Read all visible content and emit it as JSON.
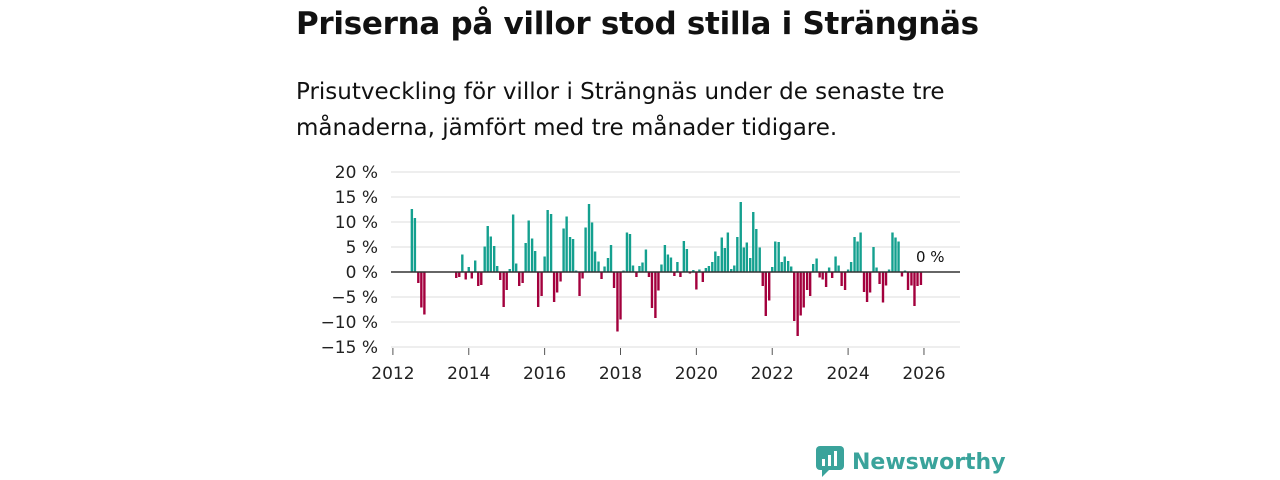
{
  "title": "Priserna på villor stod stilla i Strängnäs",
  "subtitle": "Prisutveckling för villor i Strängnäs under de senaste tre månaderna, jämfört med tre månader tidigare.",
  "brand": {
    "name": "Newsworthy",
    "icon": "bar-chart-speech-bubble-icon"
  },
  "colors": {
    "positive": "#14a08f",
    "negative": "#a3003d",
    "grid": "#dddddd",
    "zero_line": "#333333",
    "brand": "#3aa39b"
  },
  "chart_data": {
    "type": "bar",
    "y_unit": "%",
    "ylim": [
      -15,
      20
    ],
    "y_ticks": [
      "20 %",
      "15 %",
      "10 %",
      "5 %",
      "0 %",
      "−5 %",
      "−10 %",
      "−15 %"
    ],
    "y_tick_values": [
      20,
      15,
      10,
      5,
      0,
      -5,
      -10,
      -15
    ],
    "x_ticks": [
      "2012",
      "2014",
      "2016",
      "2018",
      "2020",
      "2022",
      "2024",
      "2026"
    ],
    "x_tick_values": [
      2012,
      2014,
      2016,
      2018,
      2020,
      2022,
      2024,
      2026
    ],
    "xlim": [
      2011.95,
      2026.95
    ],
    "series": [
      {
        "name": "Prisutveckling",
        "points": [
          [
            2012.5,
            12.6
          ],
          [
            2012.58,
            10.8
          ],
          [
            2012.67,
            -2.2
          ],
          [
            2012.75,
            -7.1
          ],
          [
            2012.83,
            -8.5
          ],
          [
            2013.67,
            -1.2
          ],
          [
            2013.75,
            -1.0
          ],
          [
            2013.83,
            3.5
          ],
          [
            2013.92,
            -1.5
          ],
          [
            2014.0,
            1.0
          ],
          [
            2014.08,
            -1.3
          ],
          [
            2014.17,
            2.3
          ],
          [
            2014.25,
            -2.8
          ],
          [
            2014.33,
            -2.6
          ],
          [
            2014.42,
            5.1
          ],
          [
            2014.5,
            9.2
          ],
          [
            2014.58,
            7.1
          ],
          [
            2014.67,
            5.2
          ],
          [
            2014.75,
            1.2
          ],
          [
            2014.83,
            -1.6
          ],
          [
            2014.92,
            -7.0
          ],
          [
            2015.0,
            -3.6
          ],
          [
            2015.08,
            0.6
          ],
          [
            2015.17,
            11.5
          ],
          [
            2015.25,
            1.7
          ],
          [
            2015.33,
            -2.8
          ],
          [
            2015.42,
            -2.2
          ],
          [
            2015.5,
            5.8
          ],
          [
            2015.58,
            10.3
          ],
          [
            2015.67,
            6.7
          ],
          [
            2015.75,
            4.2
          ],
          [
            2015.83,
            -7.0
          ],
          [
            2015.92,
            -4.8
          ],
          [
            2016.0,
            3.1
          ],
          [
            2016.08,
            12.4
          ],
          [
            2016.17,
            11.6
          ],
          [
            2016.25,
            -6.0
          ],
          [
            2016.33,
            -4.1
          ],
          [
            2016.42,
            -1.9
          ],
          [
            2016.5,
            8.7
          ],
          [
            2016.58,
            11.1
          ],
          [
            2016.67,
            7.0
          ],
          [
            2016.75,
            6.6
          ],
          [
            2016.83,
            0.3
          ],
          [
            2016.92,
            -4.8
          ],
          [
            2017.0,
            -1.3
          ],
          [
            2017.08,
            8.9
          ],
          [
            2017.17,
            13.6
          ],
          [
            2017.25,
            9.9
          ],
          [
            2017.33,
            4.1
          ],
          [
            2017.42,
            2.1
          ],
          [
            2017.5,
            -1.4
          ],
          [
            2017.58,
            1.1
          ],
          [
            2017.67,
            2.8
          ],
          [
            2017.75,
            5.4
          ],
          [
            2017.83,
            -3.2
          ],
          [
            2017.92,
            -11.9
          ],
          [
            2018.0,
            -9.5
          ],
          [
            2018.08,
            0.3
          ],
          [
            2018.17,
            7.9
          ],
          [
            2018.25,
            7.6
          ],
          [
            2018.33,
            1.3
          ],
          [
            2018.42,
            -1.0
          ],
          [
            2018.5,
            1.2
          ],
          [
            2018.58,
            1.9
          ],
          [
            2018.67,
            4.5
          ],
          [
            2018.75,
            -1.0
          ],
          [
            2018.83,
            -7.2
          ],
          [
            2018.92,
            -9.2
          ],
          [
            2019.0,
            -3.7
          ],
          [
            2019.08,
            1.5
          ],
          [
            2019.17,
            5.4
          ],
          [
            2019.25,
            3.5
          ],
          [
            2019.33,
            2.9
          ],
          [
            2019.42,
            -0.8
          ],
          [
            2019.5,
            2.0
          ],
          [
            2019.58,
            -1.0
          ],
          [
            2019.67,
            6.2
          ],
          [
            2019.75,
            4.6
          ],
          [
            2019.83,
            -0.3
          ],
          [
            2019.92,
            0.4
          ],
          [
            2020.0,
            -3.5
          ],
          [
            2020.08,
            0.5
          ],
          [
            2020.17,
            -2.0
          ],
          [
            2020.25,
            0.8
          ],
          [
            2020.33,
            1.2
          ],
          [
            2020.42,
            2.0
          ],
          [
            2020.5,
            4.1
          ],
          [
            2020.58,
            3.2
          ],
          [
            2020.67,
            6.9
          ],
          [
            2020.75,
            4.8
          ],
          [
            2020.83,
            7.9
          ],
          [
            2020.92,
            0.6
          ],
          [
            2021.0,
            1.3
          ],
          [
            2021.08,
            7.0
          ],
          [
            2021.17,
            14.0
          ],
          [
            2021.25,
            4.9
          ],
          [
            2021.33,
            5.9
          ],
          [
            2021.42,
            2.8
          ],
          [
            2021.5,
            12.0
          ],
          [
            2021.58,
            8.6
          ],
          [
            2021.67,
            4.9
          ],
          [
            2021.75,
            -2.8
          ],
          [
            2021.83,
            -8.8
          ],
          [
            2021.92,
            -5.7
          ],
          [
            2022.0,
            1.0
          ],
          [
            2022.08,
            6.1
          ],
          [
            2022.17,
            6.0
          ],
          [
            2022.25,
            2.0
          ],
          [
            2022.33,
            3.1
          ],
          [
            2022.42,
            2.2
          ],
          [
            2022.5,
            1.1
          ],
          [
            2022.58,
            -9.8
          ],
          [
            2022.67,
            -12.8
          ],
          [
            2022.75,
            -8.7
          ],
          [
            2022.83,
            -7.1
          ],
          [
            2022.92,
            -3.6
          ],
          [
            2023.0,
            -4.8
          ],
          [
            2023.08,
            1.6
          ],
          [
            2023.17,
            2.7
          ],
          [
            2023.25,
            -1.1
          ],
          [
            2023.33,
            -1.5
          ],
          [
            2023.42,
            -3.0
          ],
          [
            2023.5,
            0.9
          ],
          [
            2023.58,
            -1.2
          ],
          [
            2023.67,
            3.1
          ],
          [
            2023.75,
            1.3
          ],
          [
            2023.83,
            -2.8
          ],
          [
            2023.92,
            -3.6
          ],
          [
            2024.0,
            0.5
          ],
          [
            2024.08,
            2.0
          ],
          [
            2024.17,
            7.0
          ],
          [
            2024.25,
            6.1
          ],
          [
            2024.33,
            7.9
          ],
          [
            2024.42,
            -4.0
          ],
          [
            2024.5,
            -6.0
          ],
          [
            2024.58,
            -4.1
          ],
          [
            2024.67,
            5.0
          ],
          [
            2024.75,
            0.9
          ],
          [
            2024.83,
            -2.4
          ],
          [
            2024.92,
            -6.1
          ],
          [
            2025.0,
            -2.7
          ],
          [
            2025.08,
            0.5
          ],
          [
            2025.17,
            7.9
          ],
          [
            2025.25,
            6.9
          ],
          [
            2025.33,
            6.1
          ],
          [
            2025.42,
            -0.9
          ],
          [
            2025.5,
            0.3
          ],
          [
            2025.58,
            -3.6
          ],
          [
            2025.67,
            -2.7
          ],
          [
            2025.75,
            -6.8
          ],
          [
            2025.83,
            -2.8
          ],
          [
            2025.92,
            -2.6
          ],
          [
            2026.0,
            0.0
          ]
        ]
      }
    ],
    "annotations": [
      {
        "x": 2026.0,
        "y": 0,
        "text": "0 %"
      }
    ]
  }
}
